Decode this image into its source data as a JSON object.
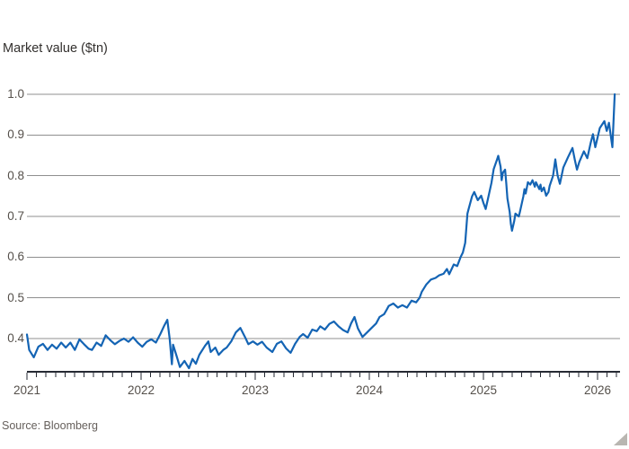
{
  "title": "Market value ($tn)",
  "source": "Source: Bloomberg",
  "colors": {
    "background": "#ffffff",
    "line": "#1464b4",
    "grid": "#8f8f8f",
    "axis": "#262a33",
    "title_text": "#33302e",
    "tick_text": "#55504b",
    "muted_text": "#66605c",
    "corner_triangle": "#b9b6b1"
  },
  "chart_data": {
    "type": "line",
    "title": "Market value ($tn)",
    "xlabel": "",
    "ylabel": "Market value ($tn)",
    "x_ticks": [
      2021,
      2022,
      2023,
      2024,
      2025,
      2026
    ],
    "x_tick_labels": [
      "2021",
      "2022",
      "2023",
      "2024",
      "2025",
      "2026"
    ],
    "y_ticks": [
      0.4,
      0.5,
      0.6,
      0.7,
      0.8,
      0.9,
      1.0
    ],
    "y_tick_labels": [
      "0.4",
      "0.5",
      "0.6",
      "0.7",
      "0.8",
      "0.9",
      "1.0"
    ],
    "xlim": [
      2021,
      2026.2
    ],
    "ylim": [
      0.318,
      1.01
    ],
    "grid": true,
    "minor_x_ticks": "monthly",
    "legend": "none",
    "source": "Source: Bloomberg",
    "series": [
      {
        "name": "Market value ($tn)",
        "color": "#1464b4",
        "points": [
          [
            2021.0,
            0.41
          ],
          [
            2021.02,
            0.372
          ],
          [
            2021.06,
            0.354
          ],
          [
            2021.1,
            0.38
          ],
          [
            2021.14,
            0.387
          ],
          [
            2021.18,
            0.372
          ],
          [
            2021.22,
            0.385
          ],
          [
            2021.26,
            0.375
          ],
          [
            2021.3,
            0.39
          ],
          [
            2021.34,
            0.378
          ],
          [
            2021.38,
            0.39
          ],
          [
            2021.42,
            0.372
          ],
          [
            2021.46,
            0.398
          ],
          [
            2021.5,
            0.386
          ],
          [
            2021.54,
            0.375
          ],
          [
            2021.57,
            0.372
          ],
          [
            2021.61,
            0.39
          ],
          [
            2021.65,
            0.382
          ],
          [
            2021.69,
            0.408
          ],
          [
            2021.73,
            0.396
          ],
          [
            2021.77,
            0.386
          ],
          [
            2021.81,
            0.394
          ],
          [
            2021.85,
            0.4
          ],
          [
            2021.89,
            0.392
          ],
          [
            2021.93,
            0.403
          ],
          [
            2021.97,
            0.39
          ],
          [
            2022.01,
            0.38
          ],
          [
            2022.05,
            0.392
          ],
          [
            2022.09,
            0.398
          ],
          [
            2022.13,
            0.39
          ],
          [
            2022.17,
            0.412
          ],
          [
            2022.2,
            0.43
          ],
          [
            2022.23,
            0.446
          ],
          [
            2022.25,
            0.4
          ],
          [
            2022.27,
            0.337
          ],
          [
            2022.28,
            0.385
          ],
          [
            2022.31,
            0.358
          ],
          [
            2022.34,
            0.33
          ],
          [
            2022.38,
            0.345
          ],
          [
            2022.42,
            0.327
          ],
          [
            2022.45,
            0.35
          ],
          [
            2022.48,
            0.338
          ],
          [
            2022.51,
            0.36
          ],
          [
            2022.56,
            0.382
          ],
          [
            2022.59,
            0.393
          ],
          [
            2022.61,
            0.367
          ],
          [
            2022.65,
            0.378
          ],
          [
            2022.68,
            0.36
          ],
          [
            2022.72,
            0.372
          ],
          [
            2022.75,
            0.378
          ],
          [
            2022.79,
            0.393
          ],
          [
            2022.83,
            0.415
          ],
          [
            2022.87,
            0.426
          ],
          [
            2022.91,
            0.404
          ],
          [
            2022.94,
            0.386
          ],
          [
            2022.98,
            0.393
          ],
          [
            2023.02,
            0.385
          ],
          [
            2023.06,
            0.392
          ],
          [
            2023.1,
            0.378
          ],
          [
            2023.15,
            0.367
          ],
          [
            2023.19,
            0.387
          ],
          [
            2023.23,
            0.393
          ],
          [
            2023.27,
            0.376
          ],
          [
            2023.31,
            0.365
          ],
          [
            2023.35,
            0.387
          ],
          [
            2023.39,
            0.404
          ],
          [
            2023.42,
            0.411
          ],
          [
            2023.46,
            0.402
          ],
          [
            2023.5,
            0.422
          ],
          [
            2023.54,
            0.418
          ],
          [
            2023.57,
            0.43
          ],
          [
            2023.61,
            0.422
          ],
          [
            2023.65,
            0.436
          ],
          [
            2023.69,
            0.442
          ],
          [
            2023.73,
            0.43
          ],
          [
            2023.77,
            0.421
          ],
          [
            2023.81,
            0.415
          ],
          [
            2023.84,
            0.437
          ],
          [
            2023.87,
            0.453
          ],
          [
            2023.9,
            0.425
          ],
          [
            2023.94,
            0.404
          ],
          [
            2023.98,
            0.415
          ],
          [
            2024.02,
            0.426
          ],
          [
            2024.06,
            0.437
          ],
          [
            2024.09,
            0.453
          ],
          [
            2024.13,
            0.46
          ],
          [
            2024.15,
            0.47
          ],
          [
            2024.17,
            0.48
          ],
          [
            2024.21,
            0.486
          ],
          [
            2024.25,
            0.476
          ],
          [
            2024.29,
            0.482
          ],
          [
            2024.33,
            0.476
          ],
          [
            2024.37,
            0.493
          ],
          [
            2024.41,
            0.489
          ],
          [
            2024.44,
            0.5
          ],
          [
            2024.46,
            0.515
          ],
          [
            2024.5,
            0.533
          ],
          [
            2024.54,
            0.545
          ],
          [
            2024.58,
            0.549
          ],
          [
            2024.61,
            0.555
          ],
          [
            2024.65,
            0.559
          ],
          [
            2024.68,
            0.571
          ],
          [
            2024.7,
            0.558
          ],
          [
            2024.74,
            0.582
          ],
          [
            2024.77,
            0.578
          ],
          [
            2024.8,
            0.6
          ],
          [
            2024.82,
            0.611
          ],
          [
            2024.84,
            0.635
          ],
          [
            2024.86,
            0.707
          ],
          [
            2024.87,
            0.718
          ],
          [
            2024.9,
            0.749
          ],
          [
            2024.92,
            0.76
          ],
          [
            2024.95,
            0.74
          ],
          [
            2024.98,
            0.751
          ],
          [
            2025.0,
            0.733
          ],
          [
            2025.02,
            0.718
          ],
          [
            2025.04,
            0.744
          ],
          [
            2025.07,
            0.782
          ],
          [
            2025.09,
            0.816
          ],
          [
            2025.12,
            0.84
          ],
          [
            2025.13,
            0.849
          ],
          [
            2025.15,
            0.822
          ],
          [
            2025.16,
            0.789
          ],
          [
            2025.17,
            0.807
          ],
          [
            2025.19,
            0.815
          ],
          [
            2025.2,
            0.782
          ],
          [
            2025.21,
            0.744
          ],
          [
            2025.23,
            0.711
          ],
          [
            2025.24,
            0.682
          ],
          [
            2025.25,
            0.665
          ],
          [
            2025.27,
            0.689
          ],
          [
            2025.28,
            0.707
          ],
          [
            2025.31,
            0.7
          ],
          [
            2025.32,
            0.711
          ],
          [
            2025.35,
            0.749
          ],
          [
            2025.36,
            0.767
          ],
          [
            2025.37,
            0.756
          ],
          [
            2025.39,
            0.784
          ],
          [
            2025.41,
            0.778
          ],
          [
            2025.43,
            0.789
          ],
          [
            2025.45,
            0.773
          ],
          [
            2025.46,
            0.784
          ],
          [
            2025.49,
            0.767
          ],
          [
            2025.5,
            0.778
          ],
          [
            2025.51,
            0.762
          ],
          [
            2025.53,
            0.771
          ],
          [
            2025.55,
            0.751
          ],
          [
            2025.57,
            0.76
          ],
          [
            2025.58,
            0.775
          ],
          [
            2025.61,
            0.8
          ],
          [
            2025.63,
            0.84
          ],
          [
            2025.65,
            0.8
          ],
          [
            2025.67,
            0.78
          ],
          [
            2025.7,
            0.82
          ],
          [
            2025.74,
            0.845
          ],
          [
            2025.78,
            0.868
          ],
          [
            2025.8,
            0.84
          ],
          [
            2025.82,
            0.815
          ],
          [
            2025.84,
            0.834
          ],
          [
            2025.88,
            0.86
          ],
          [
            2025.91,
            0.843
          ],
          [
            2025.94,
            0.881
          ],
          [
            2025.96,
            0.902
          ],
          [
            2025.98,
            0.87
          ],
          [
            2026.02,
            0.917
          ],
          [
            2026.06,
            0.934
          ],
          [
            2026.08,
            0.91
          ],
          [
            2026.1,
            0.93
          ],
          [
            2026.13,
            0.87
          ],
          [
            2026.15,
            1.0
          ]
        ]
      }
    ]
  }
}
